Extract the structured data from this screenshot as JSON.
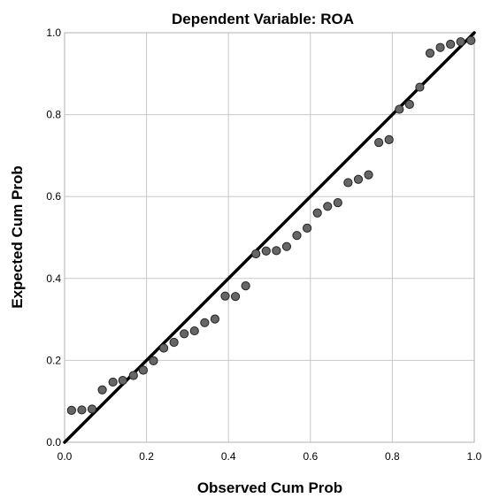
{
  "chart_data": {
    "type": "scatter",
    "title": "Dependent Variable: ROA",
    "xlabel": "Observed Cum Prob",
    "ylabel": "Expected Cum Prob",
    "xlim": [
      0.0,
      1.0
    ],
    "ylim": [
      0.0,
      1.0
    ],
    "xticks": [
      "0.0",
      "0.2",
      "0.4",
      "0.6",
      "0.8",
      "1.0"
    ],
    "yticks": [
      "0.0",
      "0.2",
      "0.4",
      "0.6",
      "0.8",
      "1.0"
    ],
    "grid": true,
    "reference_line": {
      "from": [
        0,
        0
      ],
      "to": [
        1,
        1
      ]
    },
    "points": [
      [
        0.017,
        0.078
      ],
      [
        0.042,
        0.079
      ],
      [
        0.067,
        0.081
      ],
      [
        0.092,
        0.128
      ],
      [
        0.118,
        0.147
      ],
      [
        0.142,
        0.151
      ],
      [
        0.168,
        0.163
      ],
      [
        0.192,
        0.176
      ],
      [
        0.217,
        0.199
      ],
      [
        0.242,
        0.23
      ],
      [
        0.267,
        0.244
      ],
      [
        0.292,
        0.265
      ],
      [
        0.317,
        0.272
      ],
      [
        0.342,
        0.292
      ],
      [
        0.367,
        0.301
      ],
      [
        0.392,
        0.357
      ],
      [
        0.417,
        0.356
      ],
      [
        0.442,
        0.382
      ],
      [
        0.467,
        0.46
      ],
      [
        0.492,
        0.467
      ],
      [
        0.517,
        0.468
      ],
      [
        0.542,
        0.478
      ],
      [
        0.567,
        0.505
      ],
      [
        0.592,
        0.523
      ],
      [
        0.617,
        0.56
      ],
      [
        0.642,
        0.576
      ],
      [
        0.667,
        0.585
      ],
      [
        0.692,
        0.634
      ],
      [
        0.717,
        0.642
      ],
      [
        0.742,
        0.653
      ],
      [
        0.767,
        0.732
      ],
      [
        0.792,
        0.739
      ],
      [
        0.817,
        0.813
      ],
      [
        0.842,
        0.825
      ],
      [
        0.867,
        0.867
      ],
      [
        0.892,
        0.95
      ],
      [
        0.917,
        0.964
      ],
      [
        0.942,
        0.972
      ],
      [
        0.967,
        0.978
      ],
      [
        0.992,
        0.981
      ]
    ],
    "marker_color": "#666666",
    "line_color": "#000000",
    "grid_color": "#c8c8c8"
  }
}
